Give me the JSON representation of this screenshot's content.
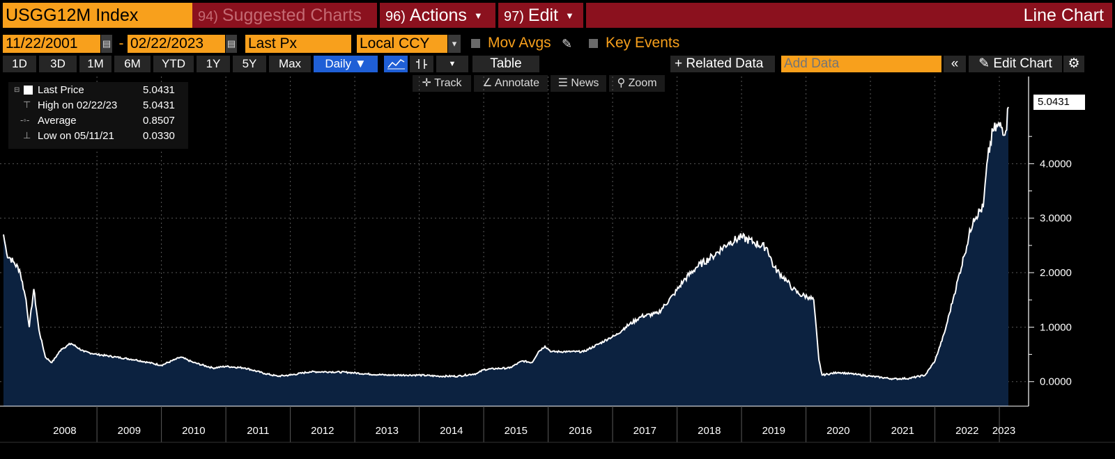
{
  "header": {
    "ticker": "USGG12M Index",
    "suggested_num": "94)",
    "suggested_label": "Suggested Charts",
    "actions_num": "96)",
    "actions_label": "Actions",
    "edit_num": "97)",
    "edit_label": "Edit",
    "chart_kind": "Line Chart"
  },
  "controls": {
    "start_date": "11/22/2001",
    "date_sep": "-",
    "end_date": "02/22/2023",
    "field": "Last Px",
    "currency": "Local CCY",
    "mov_avgs": "Mov Avgs",
    "key_events": "Key Events"
  },
  "periods": [
    "1D",
    "3D",
    "1M",
    "6M",
    "YTD",
    "1Y",
    "5Y",
    "Max"
  ],
  "toolbar": {
    "frequency": "Daily",
    "table": "Table",
    "related_data": "Related Data",
    "add_data_placeholder": "Add Data",
    "edit_chart": "Edit Chart"
  },
  "tools": {
    "track": "Track",
    "annotate": "Annotate",
    "news": "News",
    "zoom": "Zoom"
  },
  "legend": {
    "last_label": "Last Price",
    "last_value": "5.0431",
    "high_label": "High on 02/22/23",
    "high_value": "5.0431",
    "avg_label": "Average",
    "avg_value": "0.8507",
    "low_label": "Low on 05/11/21",
    "low_value": "0.0330"
  },
  "last_tag": "5.0431",
  "colors": {
    "accent": "#f8a01c",
    "header_bar": "#8b111e",
    "area_fill": "#0c2240",
    "line": "#ffffff",
    "selected": "#1f5fd6"
  },
  "chart_data": {
    "type": "area",
    "series": [
      {
        "name": "Last Price",
        "points": [
          [
            2007.55,
            2.7
          ],
          [
            2007.6,
            2.35
          ],
          [
            2007.7,
            2.2
          ],
          [
            2007.8,
            2.05
          ],
          [
            2007.9,
            1.5
          ],
          [
            2007.95,
            1.0
          ],
          [
            2008.02,
            1.7
          ],
          [
            2008.1,
            0.95
          ],
          [
            2008.2,
            0.45
          ],
          [
            2008.3,
            0.35
          ],
          [
            2008.45,
            0.6
          ],
          [
            2008.6,
            0.7
          ],
          [
            2008.8,
            0.55
          ],
          [
            2009.0,
            0.5
          ],
          [
            2009.3,
            0.45
          ],
          [
            2009.6,
            0.4
          ],
          [
            2009.8,
            0.35
          ],
          [
            2010.0,
            0.3
          ],
          [
            2010.2,
            0.4
          ],
          [
            2010.3,
            0.45
          ],
          [
            2010.5,
            0.35
          ],
          [
            2010.8,
            0.25
          ],
          [
            2011.0,
            0.28
          ],
          [
            2011.3,
            0.25
          ],
          [
            2011.6,
            0.15
          ],
          [
            2011.8,
            0.1
          ],
          [
            2012.0,
            0.12
          ],
          [
            2012.3,
            0.18
          ],
          [
            2012.6,
            0.18
          ],
          [
            2012.9,
            0.17
          ],
          [
            2013.2,
            0.14
          ],
          [
            2013.5,
            0.12
          ],
          [
            2013.8,
            0.12
          ],
          [
            2014.0,
            0.12
          ],
          [
            2014.3,
            0.1
          ],
          [
            2014.6,
            0.1
          ],
          [
            2014.9,
            0.15
          ],
          [
            2015.0,
            0.22
          ],
          [
            2015.2,
            0.24
          ],
          [
            2015.4,
            0.25
          ],
          [
            2015.6,
            0.38
          ],
          [
            2015.75,
            0.35
          ],
          [
            2015.85,
            0.55
          ],
          [
            2015.95,
            0.65
          ],
          [
            2016.05,
            0.55
          ],
          [
            2016.3,
            0.55
          ],
          [
            2016.55,
            0.55
          ],
          [
            2016.8,
            0.7
          ],
          [
            2016.95,
            0.8
          ],
          [
            2017.05,
            0.85
          ],
          [
            2017.2,
            1.0
          ],
          [
            2017.45,
            1.2
          ],
          [
            2017.7,
            1.25
          ],
          [
            2017.95,
            1.6
          ],
          [
            2018.1,
            1.85
          ],
          [
            2018.3,
            2.1
          ],
          [
            2018.55,
            2.3
          ],
          [
            2018.8,
            2.55
          ],
          [
            2019.0,
            2.65
          ],
          [
            2019.2,
            2.55
          ],
          [
            2019.4,
            2.45
          ],
          [
            2019.5,
            2.1
          ],
          [
            2019.7,
            1.85
          ],
          [
            2019.8,
            1.7
          ],
          [
            2019.9,
            1.6
          ],
          [
            2020.05,
            1.55
          ],
          [
            2020.12,
            1.5
          ],
          [
            2020.2,
            0.4
          ],
          [
            2020.25,
            0.12
          ],
          [
            2020.5,
            0.17
          ],
          [
            2020.8,
            0.13
          ],
          [
            2021.0,
            0.1
          ],
          [
            2021.36,
            0.05
          ],
          [
            2021.6,
            0.06
          ],
          [
            2021.85,
            0.12
          ],
          [
            2022.0,
            0.38
          ],
          [
            2022.15,
            0.9
          ],
          [
            2022.3,
            1.6
          ],
          [
            2022.45,
            2.3
          ],
          [
            2022.6,
            3.0
          ],
          [
            2022.75,
            3.2
          ],
          [
            2022.82,
            4.1
          ],
          [
            2022.9,
            4.6
          ],
          [
            2023.0,
            4.7
          ],
          [
            2023.1,
            4.6
          ],
          [
            2023.14,
            5.04
          ]
        ]
      }
    ],
    "x_ticks": [
      "2008",
      "2009",
      "2010",
      "2011",
      "2012",
      "2013",
      "2014",
      "2015",
      "2016",
      "2017",
      "2018",
      "2019",
      "2020",
      "2021",
      "2022",
      "2023"
    ],
    "y_ticks": [
      "0.0000",
      "1.0000",
      "2.0000",
      "3.0000",
      "4.0000"
    ],
    "xlim": [
      2007.55,
      2023.14
    ],
    "ylim": [
      -0.45,
      5.6
    ],
    "grid": true
  }
}
